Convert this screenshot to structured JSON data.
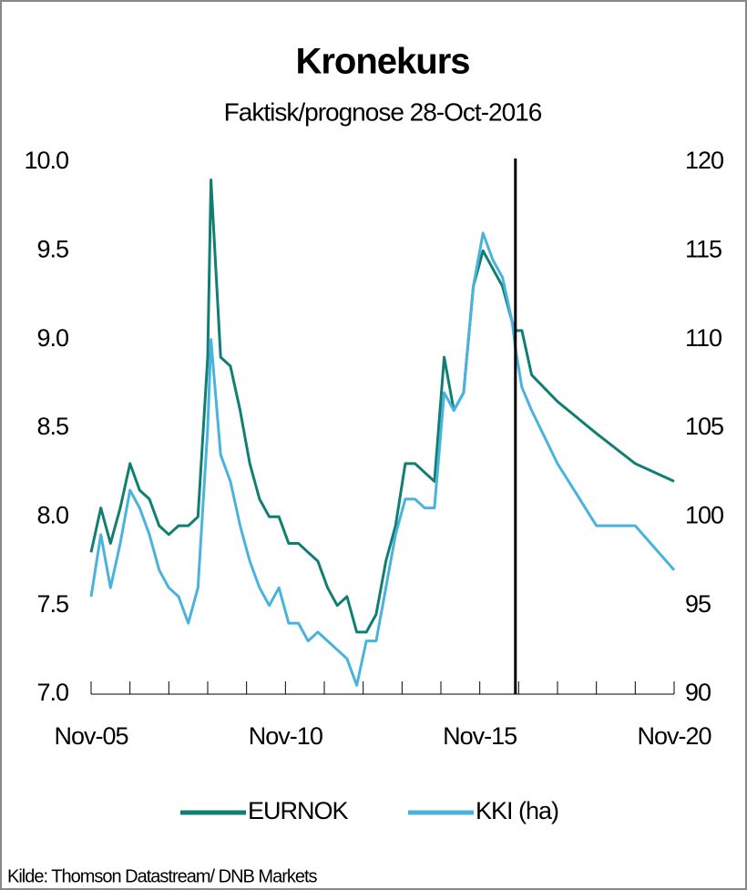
{
  "chart_data": {
    "type": "line",
    "title": "Kronekurs",
    "subtitle": "Faktisk/prognose 28-Oct-2016",
    "source": "Kilde: Thomson Datastream/ DNB Markets",
    "x": [
      "2005-11",
      "2006-02",
      "2006-05",
      "2006-08",
      "2006-11",
      "2007-02",
      "2007-05",
      "2007-08",
      "2007-11",
      "2008-02",
      "2008-05",
      "2008-08",
      "2008-11",
      "2008-12",
      "2009-03",
      "2009-06",
      "2009-09",
      "2009-12",
      "2010-03",
      "2010-06",
      "2010-09",
      "2010-12",
      "2011-03",
      "2011-06",
      "2011-09",
      "2011-12",
      "2012-03",
      "2012-06",
      "2012-09",
      "2012-12",
      "2013-03",
      "2013-06",
      "2013-09",
      "2013-12",
      "2014-03",
      "2014-06",
      "2014-09",
      "2014-12",
      "2015-03",
      "2015-06",
      "2015-09",
      "2015-12",
      "2016-03",
      "2016-06",
      "2016-09",
      "2016-10",
      "2016-12",
      "2017-03",
      "2017-11",
      "2018-11",
      "2019-11",
      "2020-11"
    ],
    "series": [
      {
        "name": "EURNOK",
        "color": "#107f73",
        "axis": "y",
        "values": [
          7.8,
          8.05,
          7.85,
          8.05,
          8.3,
          8.15,
          8.1,
          7.95,
          7.9,
          7.95,
          7.95,
          8.0,
          8.9,
          9.9,
          8.9,
          8.85,
          8.6,
          8.3,
          8.1,
          8.0,
          8.0,
          7.85,
          7.85,
          7.8,
          7.75,
          7.6,
          7.5,
          7.55,
          7.35,
          7.35,
          7.45,
          7.75,
          7.95,
          8.3,
          8.3,
          8.25,
          8.2,
          8.9,
          8.6,
          8.7,
          9.3,
          9.5,
          9.4,
          9.3,
          9.1,
          9.05,
          9.05,
          8.8,
          8.65,
          8.47,
          8.3,
          8.2
        ]
      },
      {
        "name": "KKI (ha)",
        "color": "#4ab3dd",
        "axis": "y2",
        "values": [
          95.5,
          99,
          96,
          98.5,
          101.5,
          100.5,
          99,
          97,
          96,
          95.5,
          94,
          96,
          105,
          110,
          103.5,
          102,
          99.5,
          97.5,
          96,
          95,
          96,
          94,
          94,
          93,
          93.5,
          93,
          92.5,
          92,
          90.5,
          93,
          93,
          96,
          99,
          101,
          101,
          100.5,
          100.5,
          107,
          106,
          107,
          113,
          116,
          114.5,
          113.5,
          111,
          109.5,
          107.3,
          106,
          103,
          99.5,
          99.5,
          97
        ]
      }
    ],
    "forecast_start": "2016-10",
    "xlim": [
      "2005-11",
      "2020-11"
    ],
    "xticks": [
      {
        "value": "2005-11",
        "label": "Nov-05"
      },
      {
        "value": "2010-11",
        "label": "Nov-10"
      },
      {
        "value": "2015-11",
        "label": "Nov-15"
      },
      {
        "value": "2020-11",
        "label": "Nov-20"
      }
    ],
    "xminorticks": [
      "2006-11",
      "2007-11",
      "2008-11",
      "2009-11",
      "2011-11",
      "2012-11",
      "2013-11",
      "2014-11",
      "2016-11",
      "2017-11",
      "2018-11",
      "2019-11"
    ],
    "ylim": [
      7,
      10
    ],
    "yticks": [
      {
        "value": 7,
        "label": "7.0"
      },
      {
        "value": 7.5,
        "label": "7.5"
      },
      {
        "value": 8,
        "label": "8.0"
      },
      {
        "value": 8.5,
        "label": "8.5"
      },
      {
        "value": 9,
        "label": "9.0"
      },
      {
        "value": 9.5,
        "label": "9.5"
      },
      {
        "value": 10,
        "label": "10.0"
      }
    ],
    "y2lim": [
      90,
      120
    ],
    "y2ticks": [
      90,
      95,
      100,
      105,
      110,
      115,
      120
    ],
    "legend": "bottom"
  }
}
